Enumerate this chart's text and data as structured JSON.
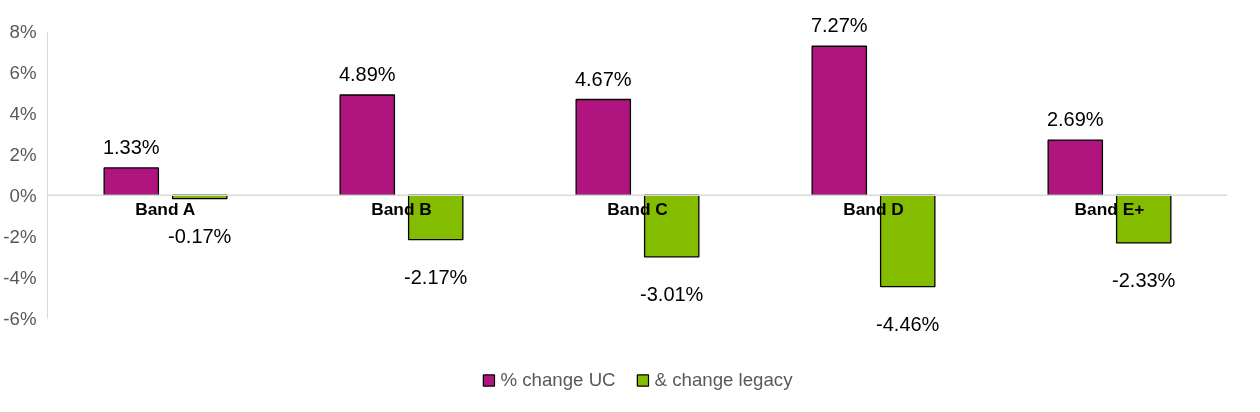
{
  "chart_data": {
    "type": "bar",
    "categories": [
      "Band A",
      "Band B",
      "Band C",
      "Band D",
      "Band E+"
    ],
    "series": [
      {
        "name": "% change UC",
        "color": "#b0157f",
        "values": [
          1.33,
          4.89,
          4.67,
          7.27,
          2.69
        ],
        "value_labels": [
          "1.33%",
          "4.89%",
          "4.67%",
          "7.27%",
          "2.69%"
        ]
      },
      {
        "name": "& change legacy",
        "color": "#84bc00",
        "values": [
          -0.17,
          -2.17,
          -3.01,
          -4.46,
          -2.33
        ],
        "value_labels": [
          "-0.17%",
          "-2.17%",
          "-3.01%",
          "-4.46%",
          "-2.33%"
        ]
      }
    ],
    "ylim": [
      -6,
      8
    ],
    "yticks": [
      {
        "value": -6,
        "label": "-6%"
      },
      {
        "value": -4,
        "label": "-4%"
      },
      {
        "value": -2,
        "label": "-2%"
      },
      {
        "value": 0,
        "label": "0%"
      },
      {
        "value": 2,
        "label": "2%"
      },
      {
        "value": 4,
        "label": "4%"
      },
      {
        "value": 6,
        "label": "6%"
      },
      {
        "value": 8,
        "label": "8%"
      }
    ],
    "grid": false,
    "legend": "bottom"
  }
}
